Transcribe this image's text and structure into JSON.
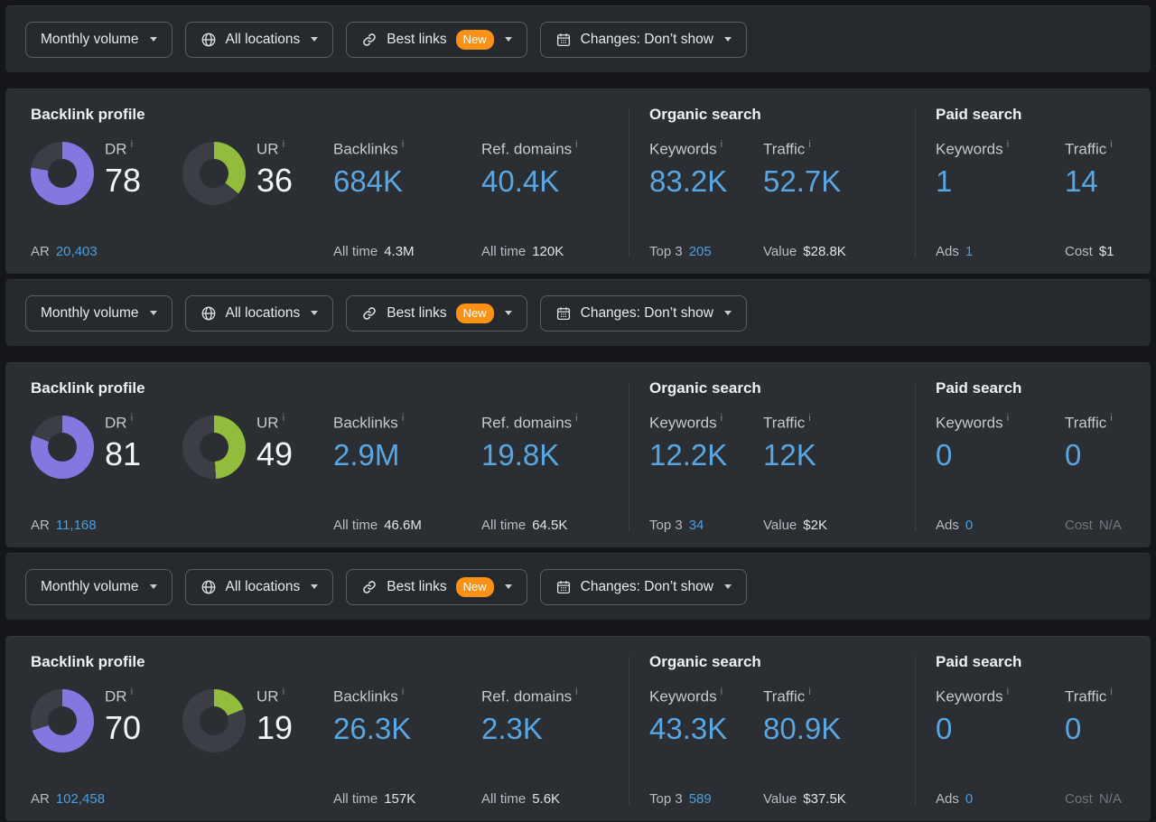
{
  "colors": {
    "purple": "#8577e0",
    "green": "#92bd3c",
    "track": "#3b3e44",
    "value_blue": "#58a6e2",
    "link_blue": "#4d9edd",
    "badge_orange": "#f99217"
  },
  "icons": {
    "info": "i"
  },
  "toolbar": {
    "volume_label": "Monthly volume",
    "locations_label": "All locations",
    "best_links_label": "Best links",
    "new_badge": "New",
    "changes_label": "Changes: Don’t show"
  },
  "panels": [
    {
      "backlink": {
        "title": "Backlink profile",
        "dr_label": "DR",
        "dr_value": "78",
        "dr_percent": 78,
        "ur_label": "UR",
        "ur_value": "36",
        "ur_percent": 36,
        "ar_label": "AR",
        "ar_value": "20,403",
        "backlinks_label": "Backlinks",
        "backlinks_value": "684K",
        "backlinks_foot_label": "All time",
        "backlinks_foot_value": "4.3M",
        "ref_label": "Ref. domains",
        "ref_value": "40.4K",
        "ref_foot_label": "All time",
        "ref_foot_value": "120K"
      },
      "organic": {
        "title": "Organic search",
        "kw_label": "Keywords",
        "kw_value": "83.2K",
        "kw_foot_label": "Top 3",
        "kw_foot_value": "205",
        "tr_label": "Traffic",
        "tr_value": "52.7K",
        "tr_foot_label": "Value",
        "tr_foot_value": "$28.8K"
      },
      "paid": {
        "title": "Paid search",
        "kw_label": "Keywords",
        "kw_value": "1",
        "kw_foot_label": "Ads",
        "kw_foot_value": "1",
        "tr_label": "Traffic",
        "tr_value": "14",
        "tr_foot_label": "Cost",
        "tr_foot_value": "$1",
        "tr_foot_muted": false
      }
    },
    {
      "backlink": {
        "title": "Backlink profile",
        "dr_label": "DR",
        "dr_value": "81",
        "dr_percent": 81,
        "ur_label": "UR",
        "ur_value": "49",
        "ur_percent": 49,
        "ar_label": "AR",
        "ar_value": "11,168",
        "backlinks_label": "Backlinks",
        "backlinks_value": "2.9M",
        "backlinks_foot_label": "All time",
        "backlinks_foot_value": "46.6M",
        "ref_label": "Ref. domains",
        "ref_value": "19.8K",
        "ref_foot_label": "All time",
        "ref_foot_value": "64.5K"
      },
      "organic": {
        "title": "Organic search",
        "kw_label": "Keywords",
        "kw_value": "12.2K",
        "kw_foot_label": "Top 3",
        "kw_foot_value": "34",
        "tr_label": "Traffic",
        "tr_value": "12K",
        "tr_foot_label": "Value",
        "tr_foot_value": "$2K"
      },
      "paid": {
        "title": "Paid search",
        "kw_label": "Keywords",
        "kw_value": "0",
        "kw_foot_label": "Ads",
        "kw_foot_value": "0",
        "tr_label": "Traffic",
        "tr_value": "0",
        "tr_foot_label": "Cost",
        "tr_foot_value": "N/A",
        "tr_foot_muted": true
      }
    },
    {
      "backlink": {
        "title": "Backlink profile",
        "dr_label": "DR",
        "dr_value": "70",
        "dr_percent": 70,
        "ur_label": "UR",
        "ur_value": "19",
        "ur_percent": 19,
        "ar_label": "AR",
        "ar_value": "102,458",
        "backlinks_label": "Backlinks",
        "backlinks_value": "26.3K",
        "backlinks_foot_label": "All time",
        "backlinks_foot_value": "157K",
        "ref_label": "Ref. domains",
        "ref_value": "2.3K",
        "ref_foot_label": "All time",
        "ref_foot_value": "5.6K"
      },
      "organic": {
        "title": "Organic search",
        "kw_label": "Keywords",
        "kw_value": "43.3K",
        "kw_foot_label": "Top 3",
        "kw_foot_value": "589",
        "tr_label": "Traffic",
        "tr_value": "80.9K",
        "tr_foot_label": "Value",
        "tr_foot_value": "$37.5K"
      },
      "paid": {
        "title": "Paid search",
        "kw_label": "Keywords",
        "kw_value": "0",
        "kw_foot_label": "Ads",
        "kw_foot_value": "0",
        "tr_label": "Traffic",
        "tr_value": "0",
        "tr_foot_label": "Cost",
        "tr_foot_value": "N/A",
        "tr_foot_muted": true
      }
    }
  ]
}
